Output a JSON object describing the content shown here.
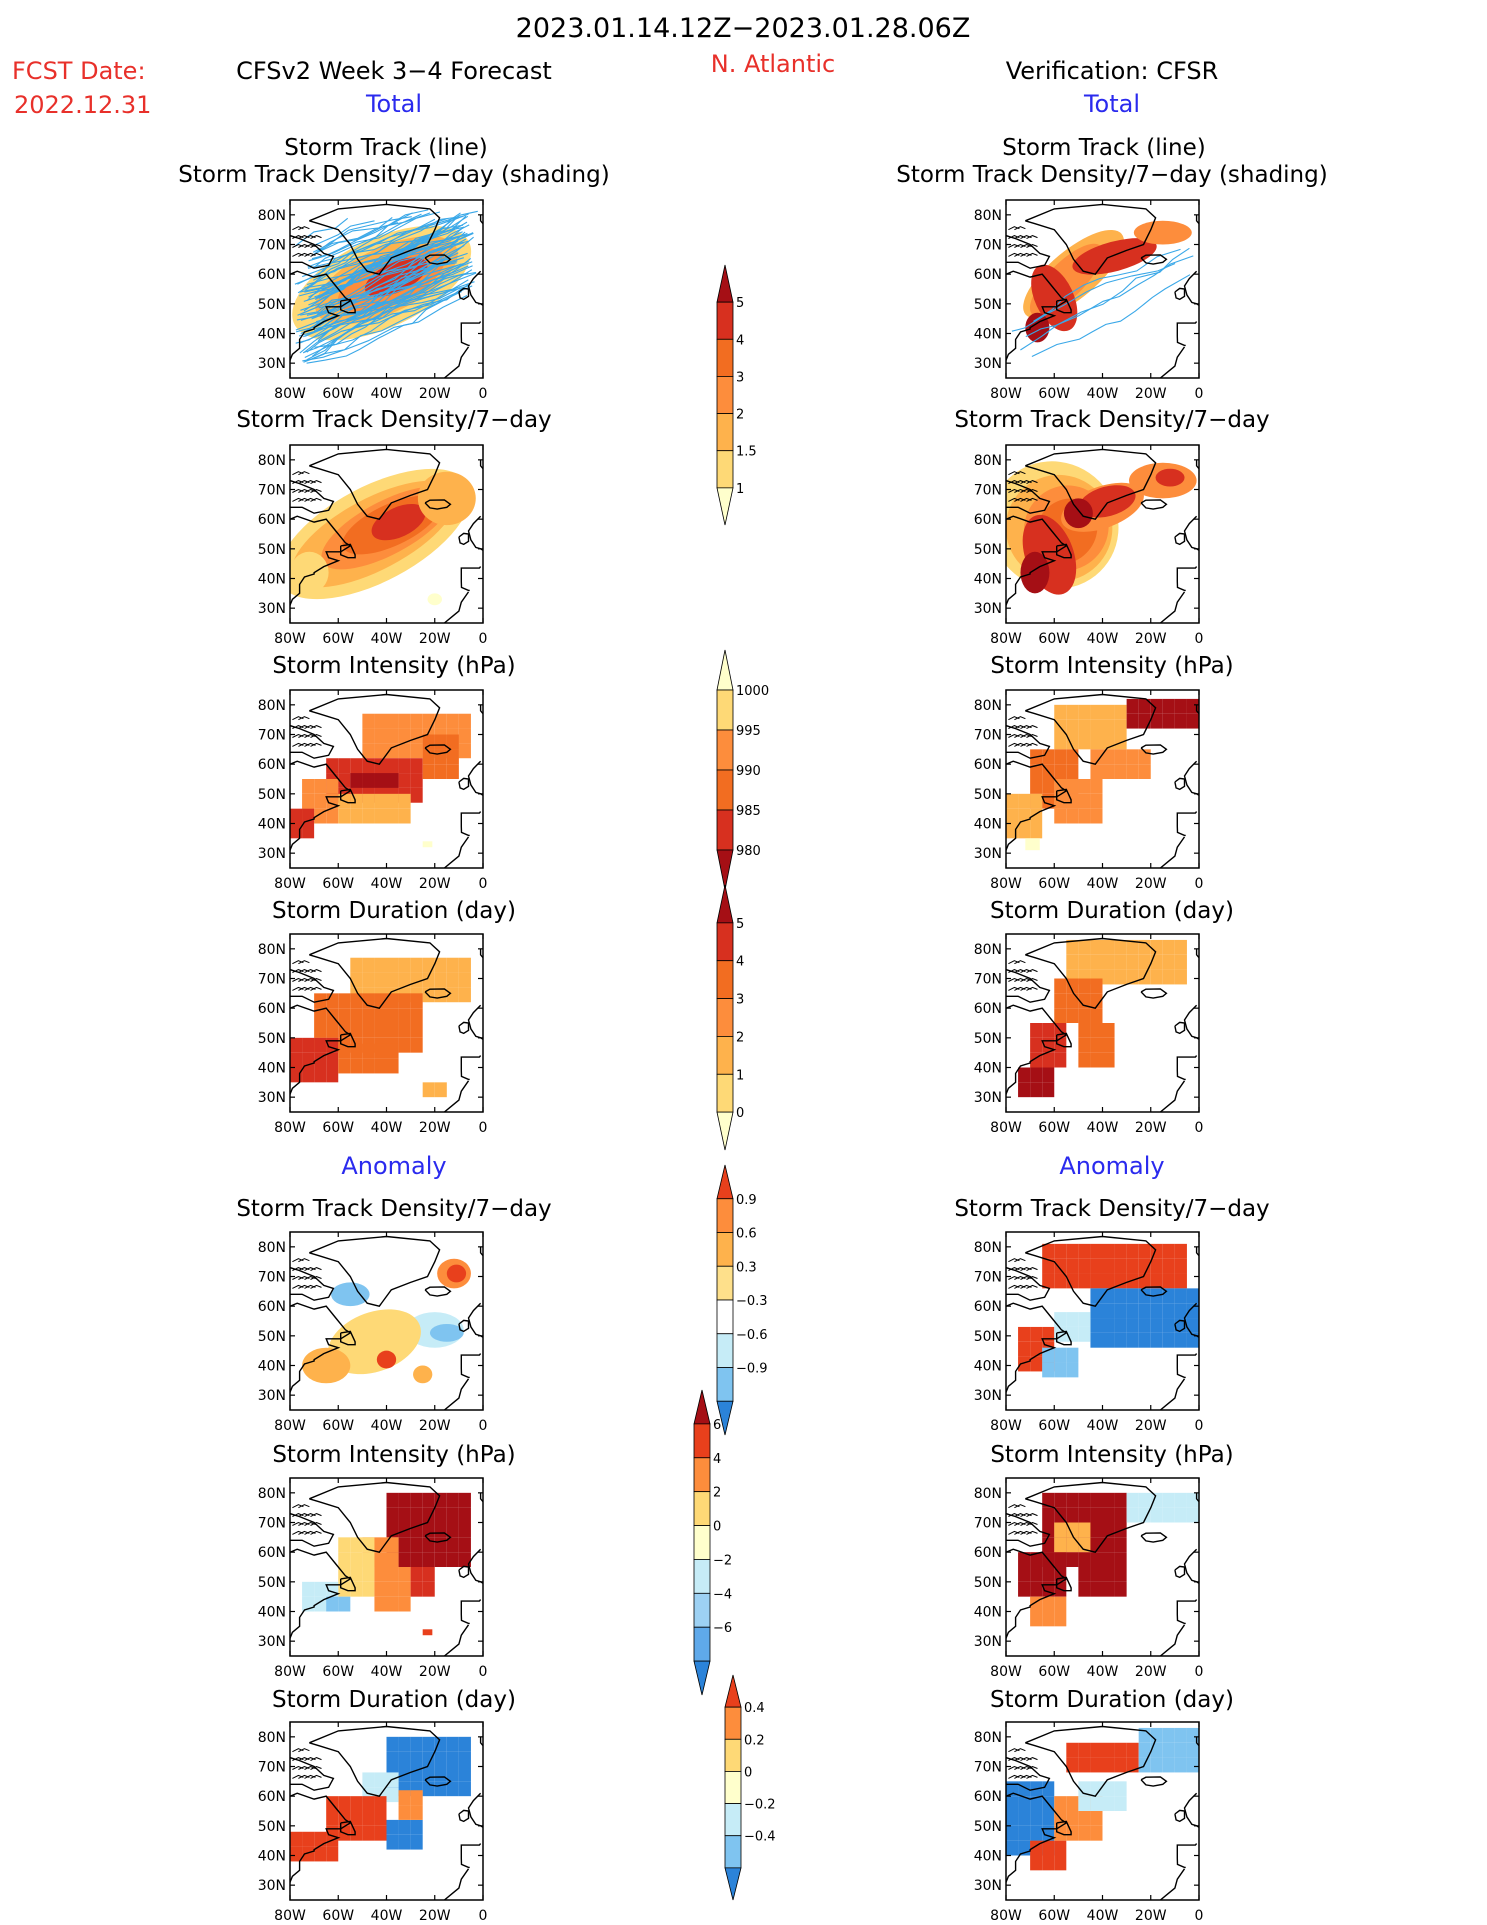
{
  "header": {
    "date_range": "2023.01.14.12Z−2023.01.28.06Z",
    "fcst_label": "FCST Date:",
    "fcst_date": "2022.12.31",
    "left_title": "CFSv2 Week 3−4 Forecast",
    "region": "N. Atlantic",
    "right_title": "Verification: CFSR",
    "total_label": "Total",
    "anomaly_label": "Anomaly"
  },
  "panel_titles": {
    "storm_track_line": "Storm Track (line)",
    "storm_track_shading": "Storm Track Density/7−day (shading)",
    "density": "Storm Track Density/7−day",
    "intensity": "Storm Intensity (hPa)",
    "duration": "Storm Duration (day)"
  },
  "axes": {
    "lat_labels": [
      "80N",
      "70N",
      "60N",
      "50N",
      "40N",
      "30N"
    ],
    "lon_labels": [
      "80W",
      "60W",
      "40W",
      "20W",
      "0"
    ]
  },
  "colorbars": [
    {
      "name": "total-density",
      "labels": [
        "5",
        "4",
        "3",
        "2",
        "1.5",
        "1"
      ],
      "colors": [
        "#a50f15",
        "#d7301f",
        "#f26d21",
        "#fd8d3c",
        "#feb24c",
        "#fed976",
        "#ffffcc"
      ]
    },
    {
      "name": "total-intensity",
      "labels": [
        "1000",
        "995",
        "990",
        "985",
        "980"
      ],
      "colors": [
        "#ffffcc",
        "#fed976",
        "#fd8d3c",
        "#f26d21",
        "#d7301f",
        "#a50f15"
      ]
    },
    {
      "name": "total-duration",
      "labels": [
        "5",
        "4",
        "3",
        "2",
        "1",
        "0"
      ],
      "colors": [
        "#a50f15",
        "#d7301f",
        "#f26d21",
        "#fd8d3c",
        "#feb24c",
        "#fed976",
        "#ffffcc"
      ]
    },
    {
      "name": "anom-density",
      "labels": [
        "0.9",
        "0.6",
        "0.3",
        "−0.3",
        "−0.6",
        "−0.9"
      ],
      "colors": [
        "#e8401c",
        "#fd8d3c",
        "#feb24c",
        "#fee08b",
        "#ffffff",
        "#c6ecf7",
        "#7fc4f0",
        "#2b83d9"
      ]
    },
    {
      "name": "anom-intensity",
      "labels": [
        "6",
        "4",
        "2",
        "0",
        "−2",
        "−4",
        "−6"
      ],
      "colors": [
        "#a50f15",
        "#e8401c",
        "#fd8d3c",
        "#fed976",
        "#ffffcc",
        "#c6ecf7",
        "#9dd1f3",
        "#5fa9ea",
        "#2b83d9"
      ]
    },
    {
      "name": "anom-duration",
      "labels": [
        "0.4",
        "0.2",
        "0",
        "−0.2",
        "−0.4"
      ],
      "colors": [
        "#e8401c",
        "#fd8d3c",
        "#fed976",
        "#ffffcc",
        "#c6ecf7",
        "#7fc4f0",
        "#2b83d9"
      ]
    }
  ],
  "legend_colors": {
    "red_title": "#e8302a",
    "blue_title": "#2a2aee",
    "track_line": "#3aa8e8"
  }
}
